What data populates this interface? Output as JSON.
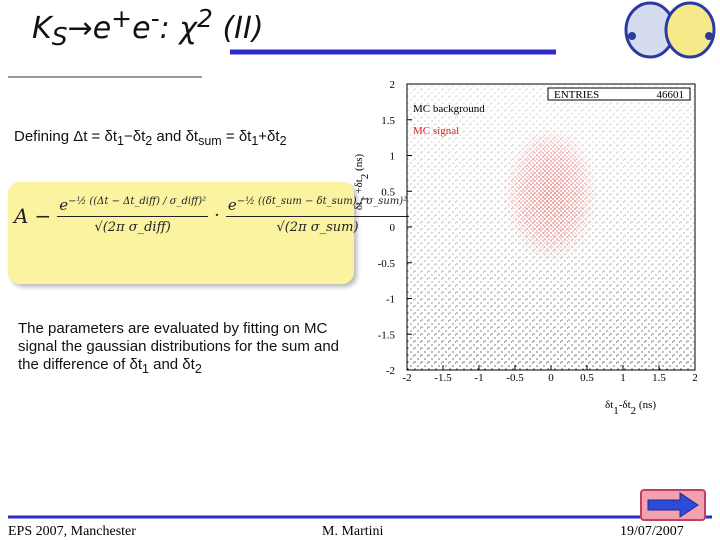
{
  "header": {
    "title": [
      {
        "text": "K"
      },
      {
        "text": "S",
        "style": "sub"
      },
      {
        "text": "→e"
      },
      {
        "text": "+",
        "style": "sup"
      },
      {
        "text": "e"
      },
      {
        "text": "-",
        "style": "sup"
      },
      {
        "text": ": χ"
      },
      {
        "text": "2",
        "style": "sup"
      },
      {
        "text": " (II)"
      }
    ]
  },
  "definition": [
    {
      "text": "Defining Δt = δt"
    },
    {
      "text": "1",
      "style": "sub"
    },
    {
      "text": "−δt"
    },
    {
      "text": "2",
      "style": "sub"
    },
    {
      "text": " and δt"
    },
    {
      "text": "sum",
      "style": "sub"
    },
    {
      "text": " = δt"
    },
    {
      "text": "1",
      "style": "sub"
    },
    {
      "text": "+δt"
    },
    {
      "text": "2",
      "style": "sub"
    }
  ],
  "formula": {
    "lhs": "A",
    "term1": {
      "base": "e",
      "exponent": "−½ ((Δt − Δt_diff) / σ_diff)²",
      "denominator": "√(2π σ_diff)"
    },
    "operator": "·",
    "term2": {
      "base": "e",
      "exponent": "−½ ((δt_sum − δt_sum) / σ_sum)²",
      "denominator": "√(2π σ_sum)"
    }
  },
  "body": [
    {
      "text": "The parameters are evaluated by fitting on MC signal the gaussian distributions for the sum and the difference of δt"
    },
    {
      "text": "1",
      "style": "sub"
    },
    {
      "text": " and δt"
    },
    {
      "text": "2",
      "style": "sub"
    }
  ],
  "chart_data": {
    "type": "scatter",
    "x_label": [
      {
        "text": "δt"
      },
      {
        "text": "1",
        "style": "sub"
      },
      {
        "text": "-δt"
      },
      {
        "text": "2",
        "style": "sub"
      },
      {
        "text": " (ns)"
      }
    ],
    "y_label": [
      {
        "text": "δt"
      },
      {
        "text": "1",
        "style": "sub"
      },
      {
        "text": " +δt"
      },
      {
        "text": "2",
        "style": "sub"
      },
      {
        "text": " (ns)"
      }
    ],
    "xlim": [
      -2,
      2
    ],
    "ylim": [
      -2,
      2
    ],
    "xticks": [
      -2,
      -1.5,
      -1,
      -0.5,
      0,
      0.5,
      1,
      1.5,
      2
    ],
    "yticks": [
      -2,
      -1.5,
      -1,
      -0.5,
      0,
      0.5,
      1,
      1.5,
      2
    ],
    "series": [
      {
        "name": "MC background",
        "color": "#000000"
      },
      {
        "name": "MC signal",
        "color": "#e0201a"
      }
    ],
    "stats": {
      "label": "ENTRIES",
      "value": 46601
    }
  },
  "footer": {
    "left": "EPS 2007, Manchester",
    "center": "M. Martini",
    "right": "19/07/2007"
  }
}
